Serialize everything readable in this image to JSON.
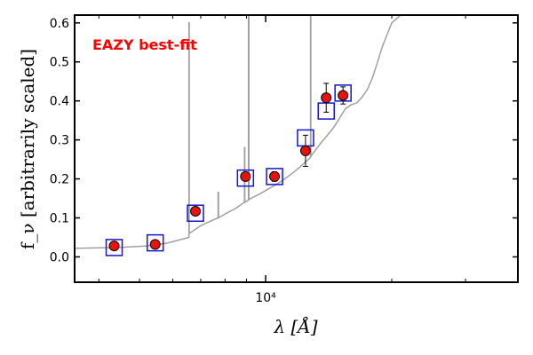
{
  "chart_data": {
    "type": "scatter",
    "xlabel": "λ [Å]",
    "ylabel": "f_ν [arbitrarily scaled]",
    "xscale": "log",
    "xlim": [
      3500,
      40000
    ],
    "ylim": [
      -0.065,
      0.62
    ],
    "yticks": [
      0.0,
      0.1,
      0.2,
      0.3,
      0.4,
      0.5,
      0.6
    ],
    "ytick_labels": [
      "0.0",
      "0.1",
      "0.2",
      "0.3",
      "0.4",
      "0.5",
      "0.6"
    ],
    "xticks": [
      10000
    ],
    "xtick_labels": [
      "10⁴"
    ],
    "grid": false,
    "annotation": {
      "text": "EAZY best-fit",
      "color": "#ff0000"
    },
    "colors": {
      "sed": "#a0a0a0",
      "model_box": "#1414d2",
      "observed": "#e8120e",
      "errorbar": "#000000"
    },
    "series": [
      {
        "kind": "sed_line",
        "x": [
          3500,
          4000,
          4600,
          5200,
          5800,
          6200,
          6560,
          6560,
          6570,
          6570,
          7000,
          7500,
          7700,
          7700,
          7720,
          7720,
          8000,
          8500,
          8900,
          8900,
          8920,
          8920,
          9100,
          9100,
          9120,
          9120,
          9300,
          9700,
          10000,
          10500,
          11000,
          11500,
          12000,
          12500,
          12800,
          12800,
          12820,
          12820,
          13500,
          14500,
          15000,
          15500,
          16000,
          16500,
          17000,
          17500,
          18000,
          18500,
          19000,
          19500,
          20000,
          21000
        ],
        "y": [
          0.022,
          0.023,
          0.025,
          0.028,
          0.035,
          0.043,
          0.05,
          0.6,
          0.6,
          0.06,
          0.08,
          0.095,
          0.1,
          0.165,
          0.165,
          0.1,
          0.11,
          0.125,
          0.14,
          0.28,
          0.28,
          0.14,
          0.145,
          0.62,
          0.62,
          0.147,
          0.152,
          0.162,
          0.17,
          0.183,
          0.197,
          0.212,
          0.228,
          0.245,
          0.255,
          0.62,
          0.62,
          0.258,
          0.29,
          0.33,
          0.355,
          0.38,
          0.39,
          0.395,
          0.41,
          0.43,
          0.46,
          0.5,
          0.54,
          0.57,
          0.6,
          0.62
        ]
      },
      {
        "kind": "model_flux",
        "x": [
          4350,
          5450,
          6800,
          8950,
          10500,
          12450,
          13950,
          15300
        ],
        "y": [
          0.024,
          0.036,
          0.112,
          0.202,
          0.206,
          0.305,
          0.374,
          0.42
        ]
      },
      {
        "kind": "observed_flux",
        "x": [
          4350,
          5450,
          6800,
          8950,
          10500,
          12450,
          13950,
          15300
        ],
        "y": [
          0.028,
          0.032,
          0.117,
          0.206,
          0.206,
          0.272,
          0.408,
          0.414
        ],
        "yerr": [
          0.004,
          0.004,
          0.008,
          0.01,
          0.012,
          0.04,
          0.037,
          0.022
        ]
      }
    ]
  }
}
